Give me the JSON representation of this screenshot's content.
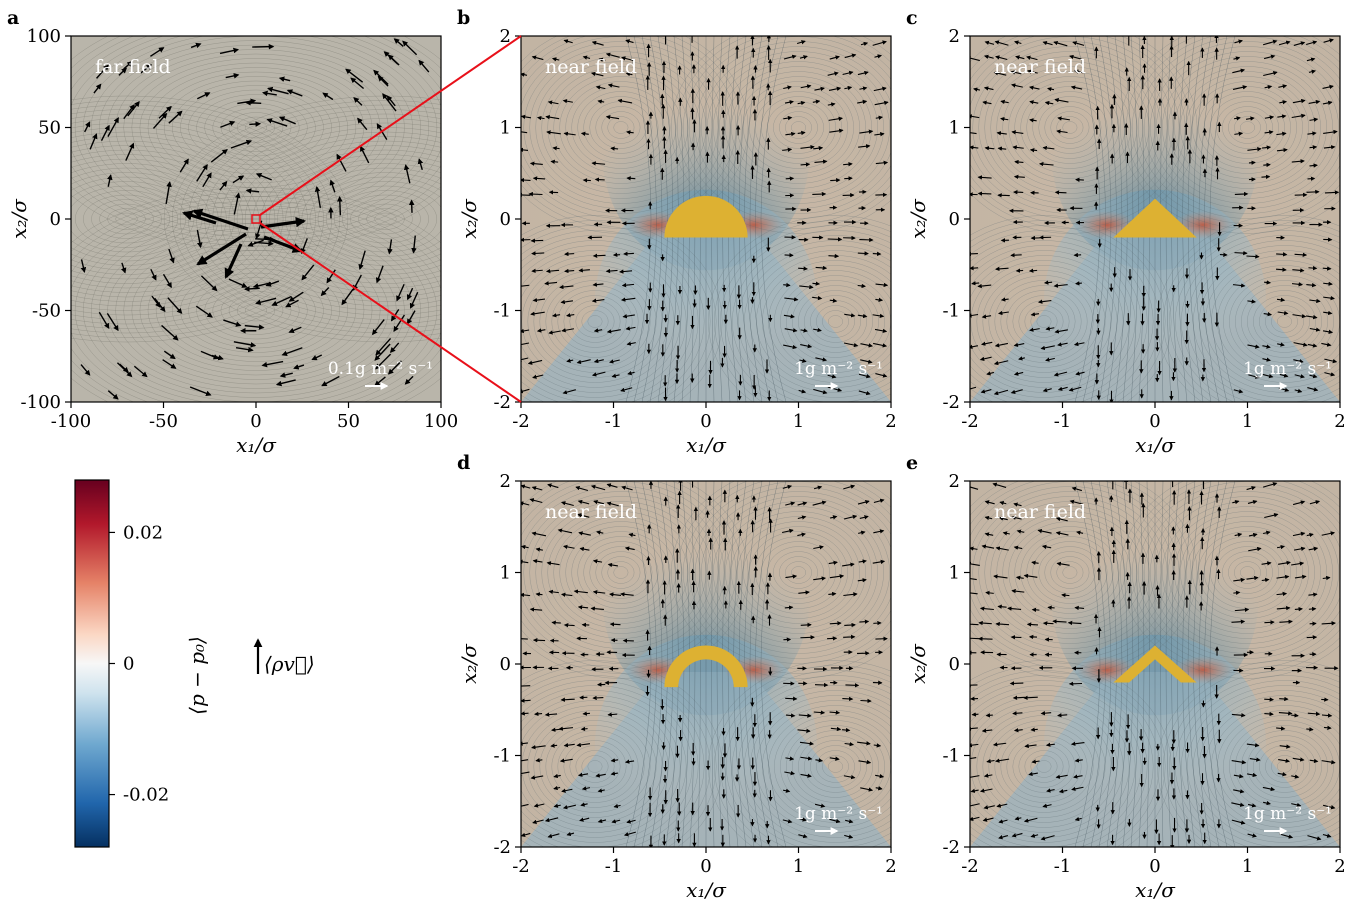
{
  "figure": {
    "panels": [
      {
        "id": "a",
        "label": "a",
        "title": "far field",
        "xlabel": "x₁/σ",
        "ylabel": "x₂/σ",
        "xticks": [
          "-100",
          "-50",
          "0",
          "50",
          "100"
        ],
        "yticks": [
          "100",
          "50",
          "0",
          "-50",
          "-100"
        ],
        "scale_label": "0.1g m⁻² s⁻¹",
        "shape": "none"
      },
      {
        "id": "b",
        "label": "b",
        "title": "near field",
        "xlabel": "x₁/σ",
        "ylabel": "x₂/σ",
        "xticks": [
          "-2",
          "-1",
          "0",
          "1",
          "2"
        ],
        "yticks": [
          "2",
          "1",
          "0",
          "-1",
          "-2"
        ],
        "scale_label": "1g m⁻² s⁻¹",
        "shape": "semicircle"
      },
      {
        "id": "c",
        "label": "c",
        "title": "near field",
        "xlabel": "x₁/σ",
        "ylabel": "x₂/σ",
        "xticks": [
          "-2",
          "-1",
          "0",
          "1",
          "2"
        ],
        "yticks": [
          "2",
          "1",
          "0",
          "-1",
          "-2"
        ],
        "scale_label": "1g m⁻² s⁻¹",
        "shape": "triangle"
      },
      {
        "id": "d",
        "label": "d",
        "title": "near field",
        "xlabel": "x₁/σ",
        "ylabel": "x₂/σ",
        "xticks": [
          "-2",
          "-1",
          "0",
          "1",
          "2"
        ],
        "yticks": [
          "2",
          "1",
          "0",
          "-1",
          "-2"
        ],
        "scale_label": "1g m⁻² s⁻¹",
        "shape": "arc"
      },
      {
        "id": "e",
        "label": "e",
        "title": "near field",
        "xlabel": "x₁/σ",
        "ylabel": "x₂/σ",
        "xticks": [
          "-2",
          "-1",
          "0",
          "1",
          "2"
        ],
        "yticks": [
          "2",
          "1",
          "0",
          "-1",
          "-2"
        ],
        "scale_label": "1g m⁻² s⁻¹",
        "shape": "chevron"
      }
    ],
    "colorbar": {
      "label": "⟨p − p₀⟩",
      "ticks": [
        "0.02",
        "0",
        "-0.02"
      ],
      "range": [
        -0.028,
        0.028
      ]
    },
    "vector_legend": {
      "label": "⟨ρv⃗⟩"
    },
    "colors": {
      "positive": "#b2182b",
      "negative": "#2166ac",
      "shape": "#ddb132",
      "zoom_lines": "#e8101a",
      "arrows": "#000000"
    }
  },
  "chart_data": {
    "type": "heatmap",
    "description_source": "pressure field with momentum-density vector overlay",
    "panels": [
      {
        "id": "a",
        "xlim": [
          -100,
          100
        ],
        "ylim": [
          -100,
          100
        ],
        "xticks": [
          -100,
          -50,
          0,
          50,
          100
        ],
        "yticks": [
          -100,
          -50,
          0,
          50,
          100
        ]
      },
      {
        "id": "b",
        "xlim": [
          -2,
          2
        ],
        "ylim": [
          -2,
          2
        ],
        "xticks": [
          -2,
          -1,
          0,
          1,
          2
        ],
        "yticks": [
          -2,
          -1,
          0,
          1,
          2
        ]
      },
      {
        "id": "c",
        "xlim": [
          -2,
          2
        ],
        "ylim": [
          -2,
          2
        ],
        "xticks": [
          -2,
          -1,
          0,
          1,
          2
        ],
        "yticks": [
          -2,
          -1,
          0,
          1,
          2
        ]
      },
      {
        "id": "d",
        "xlim": [
          -2,
          2
        ],
        "ylim": [
          -2,
          2
        ],
        "xticks": [
          -2,
          -1,
          0,
          1,
          2
        ],
        "yticks": [
          -2,
          -1,
          0,
          1,
          2
        ]
      },
      {
        "id": "e",
        "xlim": [
          -2,
          2
        ],
        "ylim": [
          -2,
          2
        ],
        "xticks": [
          -2,
          -1,
          0,
          1,
          2
        ],
        "yticks": [
          -2,
          -1,
          0,
          1,
          2
        ]
      }
    ],
    "colorbar": {
      "min": -0.028,
      "max": 0.028,
      "ticks": [
        -0.02,
        0,
        0.02
      ]
    }
  }
}
